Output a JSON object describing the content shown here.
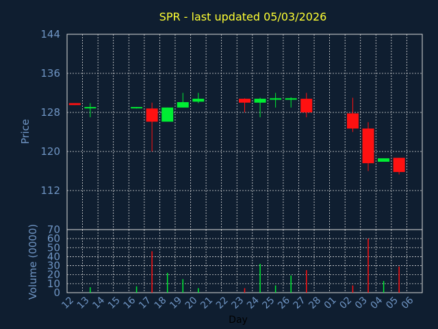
{
  "title": "SPR - last updated 05/03/2026",
  "colors": {
    "up": "#00ee33",
    "down": "#ff1111",
    "background": "#0f1e30",
    "panel_border": "#dddddd",
    "grid": "#dddddd",
    "text": "#6f95c4",
    "title": "#ffff33"
  },
  "chart_data": [
    {
      "type": "candlestick",
      "title": "SPR - last updated 05/03/2026",
      "ylabel": "Price",
      "ylim": [
        104,
        144
      ],
      "yticks": [
        112,
        120,
        128,
        136,
        144
      ],
      "grid": true,
      "candles": [
        {
          "day": "12",
          "open": 129.9,
          "high": 129.9,
          "low": 129.5,
          "close": 129.5
        },
        {
          "day": "13",
          "open": 128.9,
          "high": 129.9,
          "low": 127.0,
          "close": 129.1
        },
        {
          "day": "16",
          "open": 128.9,
          "high": 129.1,
          "low": 128.8,
          "close": 129.1
        },
        {
          "day": "17",
          "open": 128.8,
          "high": 130.0,
          "low": 120.0,
          "close": 126.1
        },
        {
          "day": "18",
          "open": 126.1,
          "high": 129.0,
          "low": 126.1,
          "close": 129.0
        },
        {
          "day": "19",
          "open": 129.0,
          "high": 132.0,
          "low": 129.0,
          "close": 130.1
        },
        {
          "day": "20",
          "open": 130.2,
          "high": 132.0,
          "low": 129.9,
          "close": 130.8
        },
        {
          "day": "23",
          "open": 130.8,
          "high": 130.9,
          "low": 128.0,
          "close": 130.0
        },
        {
          "day": "24",
          "open": 130.0,
          "high": 131.0,
          "low": 127.0,
          "close": 130.8
        },
        {
          "day": "25",
          "open": 130.6,
          "high": 132.0,
          "low": 129.0,
          "close": 130.9
        },
        {
          "day": "26",
          "open": 130.6,
          "high": 131.1,
          "low": 129.0,
          "close": 130.9
        },
        {
          "day": "27",
          "open": 130.8,
          "high": 132.0,
          "low": 127.0,
          "close": 128.0
        },
        {
          "day": "02",
          "open": 127.8,
          "high": 131.0,
          "low": 124.0,
          "close": 124.7
        },
        {
          "day": "03",
          "open": 124.7,
          "high": 126.0,
          "low": 116.0,
          "close": 117.6
        },
        {
          "day": "04",
          "open": 117.9,
          "high": 118.6,
          "low": 118.0,
          "close": 118.6
        },
        {
          "day": "05",
          "open": 118.7,
          "high": 118.7,
          "low": 115.3,
          "close": 115.8
        }
      ]
    },
    {
      "type": "bar",
      "ylabel": "Volume (0000)",
      "xlabel": "Day",
      "ylim": [
        0,
        70
      ],
      "yticks": [
        0,
        10,
        20,
        30,
        40,
        50,
        60,
        70
      ],
      "grid": true,
      "categories": [
        "12",
        "13",
        "14",
        "15",
        "16",
        "17",
        "18",
        "19",
        "20",
        "21",
        "22",
        "23",
        "24",
        "25",
        "26",
        "27",
        "28",
        "01",
        "02",
        "03",
        "04",
        "05",
        "06"
      ],
      "volumes": [
        {
          "day": "13",
          "value": 6,
          "direction": "up"
        },
        {
          "day": "16",
          "value": 7,
          "direction": "up"
        },
        {
          "day": "17",
          "value": 46,
          "direction": "down"
        },
        {
          "day": "18",
          "value": 22,
          "direction": "up"
        },
        {
          "day": "19",
          "value": 15,
          "direction": "up"
        },
        {
          "day": "20",
          "value": 5,
          "direction": "up"
        },
        {
          "day": "23",
          "value": 5,
          "direction": "down"
        },
        {
          "day": "24",
          "value": 32,
          "direction": "up"
        },
        {
          "day": "25",
          "value": 8,
          "direction": "up"
        },
        {
          "day": "26",
          "value": 19,
          "direction": "up"
        },
        {
          "day": "27",
          "value": 25,
          "direction": "down"
        },
        {
          "day": "02",
          "value": 8,
          "direction": "down"
        },
        {
          "day": "03",
          "value": 60,
          "direction": "down"
        },
        {
          "day": "04",
          "value": 13,
          "direction": "up"
        },
        {
          "day": "05",
          "value": 29,
          "direction": "down"
        }
      ]
    }
  ]
}
